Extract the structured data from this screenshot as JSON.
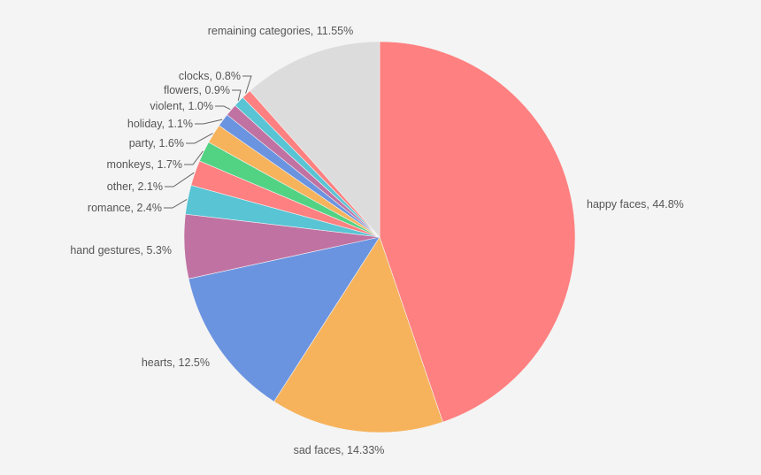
{
  "chart_data": {
    "type": "pie",
    "title": "",
    "start": "top, clockwise",
    "slices": [
      {
        "label": "happy faces",
        "value": 44.8,
        "text": "happy faces, 44.8%",
        "color": "#ff8080"
      },
      {
        "label": "sad faces",
        "value": 14.33,
        "text": "sad faces, 14.33%",
        "color": "#f6b35c"
      },
      {
        "label": "hearts",
        "value": 12.5,
        "text": "hearts, 12.5%",
        "color": "#6b94e0"
      },
      {
        "label": "hand gestures",
        "value": 5.3,
        "text": "hand gestures, 5.3%",
        "color": "#c072a2"
      },
      {
        "label": "romance",
        "value": 2.4,
        "text": "romance, 2.4%",
        "color": "#58c4d4"
      },
      {
        "label": "other",
        "value": 2.1,
        "text": "other, 2.1%",
        "color": "#ff8080"
      },
      {
        "label": "monkeys",
        "value": 1.7,
        "text": "monkeys, 1.7%",
        "color": "#52d283"
      },
      {
        "label": "party",
        "value": 1.6,
        "text": "party, 1.6%",
        "color": "#f6b35c"
      },
      {
        "label": "holiday",
        "value": 1.1,
        "text": "holiday, 1.1%",
        "color": "#6b94e0"
      },
      {
        "label": "violent",
        "value": 1.0,
        "text": "violent, 1.0%",
        "color": "#c072a2"
      },
      {
        "label": "flowers",
        "value": 0.9,
        "text": "flowers, 0.9%",
        "color": "#58c4d4"
      },
      {
        "label": "clocks",
        "value": 0.8,
        "text": "clocks, 0.8%",
        "color": "#ff8080"
      },
      {
        "label": "remaining categories",
        "value": 11.55,
        "text": "remaining categories, 11.55%",
        "color": "#dcdcdc"
      }
    ]
  }
}
